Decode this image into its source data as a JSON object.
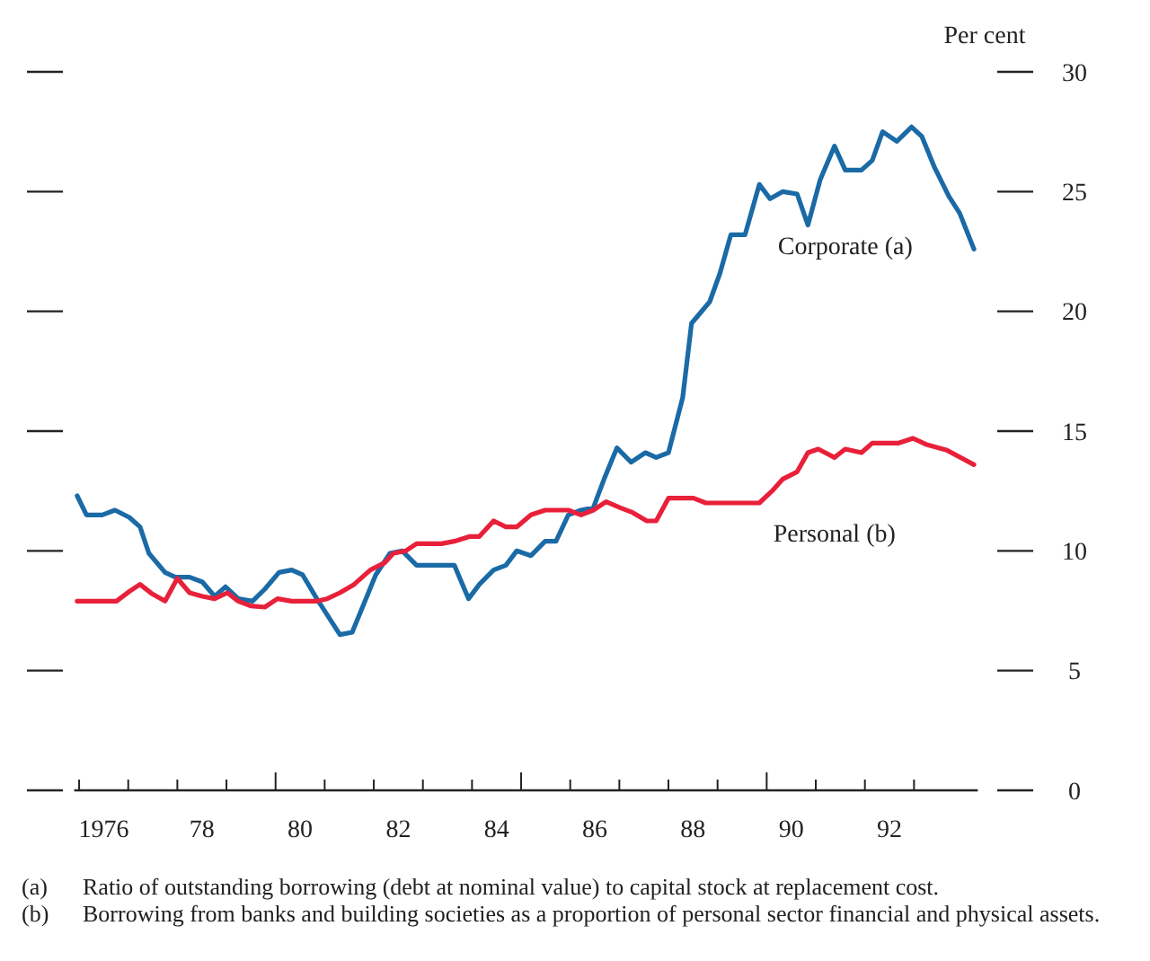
{
  "chart_data": {
    "type": "line",
    "ylabel": "Per cent",
    "xlim": [
      1975.4,
      1993.8
    ],
    "ylim": [
      0,
      30
    ],
    "xticks": [
      {
        "value": 1975.5,
        "label": null
      },
      {
        "value": 1976,
        "label": "1976"
      },
      {
        "value": 1976.5,
        "label": null
      },
      {
        "value": 1977.5,
        "label": null
      },
      {
        "value": 1978,
        "label": "78"
      },
      {
        "value": 1978.5,
        "label": null
      },
      {
        "value": 1979.5,
        "label": null
      },
      {
        "value": 1980,
        "label": "80"
      },
      {
        "value": 1980.5,
        "label": null
      },
      {
        "value": 1981.5,
        "label": null
      },
      {
        "value": 1982,
        "label": "82"
      },
      {
        "value": 1982.5,
        "label": null
      },
      {
        "value": 1983.5,
        "label": null
      },
      {
        "value": 1984,
        "label": "84"
      },
      {
        "value": 1984.5,
        "label": null
      },
      {
        "value": 1985.5,
        "label": null
      },
      {
        "value": 1986,
        "label": "86"
      },
      {
        "value": 1986.5,
        "label": null
      },
      {
        "value": 1987.5,
        "label": null
      },
      {
        "value": 1988,
        "label": "88"
      },
      {
        "value": 1988.5,
        "label": null
      },
      {
        "value": 1989.5,
        "label": null
      },
      {
        "value": 1990,
        "label": "90"
      },
      {
        "value": 1990.5,
        "label": null
      },
      {
        "value": 1991.5,
        "label": null
      },
      {
        "value": 1992,
        "label": "92"
      },
      {
        "value": 1992.5,
        "label": null
      }
    ],
    "yticks": [
      0,
      5,
      10,
      15,
      20,
      25,
      30
    ],
    "series": [
      {
        "name": "Corporate (a)",
        "color": "#1a6aa6",
        "x": [
          1975.46,
          1975.65,
          1975.97,
          1976.23,
          1976.52,
          1976.74,
          1976.92,
          1977.25,
          1977.46,
          1977.75,
          1978.01,
          1978.26,
          1978.48,
          1978.74,
          1979.03,
          1979.28,
          1979.57,
          1979.83,
          1980.05,
          1980.34,
          1980.81,
          1981.06,
          1981.28,
          1981.54,
          1981.83,
          1982.08,
          1982.37,
          1982.88,
          1983.14,
          1983.43,
          1983.65,
          1983.94,
          1984.19,
          1984.41,
          1984.7,
          1984.99,
          1985.21,
          1985.46,
          1985.72,
          1985.97,
          1986.19,
          1986.45,
          1986.74,
          1987.03,
          1987.25,
          1987.5,
          1987.79,
          1987.97,
          1988.34,
          1988.55,
          1988.77,
          1989.06,
          1989.35,
          1989.57,
          1989.83,
          1990.12,
          1990.34,
          1990.59,
          1990.88,
          1991.1,
          1991.43,
          1991.65,
          1991.86,
          1992.15,
          1992.45,
          1992.66,
          1992.92,
          1993.21,
          1993.43,
          1993.72
        ],
        "values": [
          12.3,
          11.5,
          11.5,
          11.7,
          11.4,
          11.0,
          9.9,
          9.1,
          8.9,
          8.9,
          8.7,
          8.1,
          8.5,
          8.0,
          7.9,
          8.4,
          9.1,
          9.2,
          9.0,
          8.0,
          6.5,
          6.6,
          7.7,
          9.0,
          9.9,
          10.0,
          9.4,
          9.4,
          9.4,
          8.0,
          8.6,
          9.2,
          9.4,
          10.0,
          9.8,
          10.4,
          10.4,
          11.5,
          11.7,
          11.8,
          13.0,
          14.3,
          13.7,
          14.1,
          13.9,
          14.1,
          16.4,
          19.5,
          20.4,
          21.6,
          23.2,
          23.2,
          25.3,
          24.7,
          25.0,
          24.9,
          23.6,
          25.5,
          26.9,
          25.9,
          25.9,
          26.3,
          27.5,
          27.1,
          27.7,
          27.3,
          26.0,
          24.8,
          24.1,
          22.6
        ]
      },
      {
        "name": "Personal (b)",
        "color": "#e8203a",
        "x": [
          1975.46,
          1976.26,
          1976.52,
          1976.74,
          1976.99,
          1977.25,
          1977.5,
          1977.75,
          1978.01,
          1978.26,
          1978.52,
          1978.74,
          1978.99,
          1979.28,
          1979.54,
          1979.83,
          1980.34,
          1980.55,
          1980.81,
          1981.1,
          1981.43,
          1981.72,
          1981.9,
          1982.15,
          1982.37,
          1982.88,
          1983.14,
          1983.46,
          1983.65,
          1983.94,
          1984.19,
          1984.41,
          1984.7,
          1984.99,
          1985.46,
          1985.72,
          1985.97,
          1986.23,
          1986.52,
          1986.77,
          1987.06,
          1987.25,
          1987.5,
          1988.01,
          1988.26,
          1989.35,
          1989.61,
          1989.83,
          1990.12,
          1990.34,
          1990.55,
          1990.88,
          1991.1,
          1991.43,
          1991.65,
          1992.19,
          1992.48,
          1992.74,
          1993.17,
          1993.72
        ],
        "values": [
          7.9,
          7.9,
          8.3,
          8.6,
          8.2,
          7.9,
          8.85,
          8.25,
          8.1,
          8.0,
          8.25,
          7.9,
          7.7,
          7.65,
          8.0,
          7.9,
          7.9,
          8.0,
          8.25,
          8.6,
          9.2,
          9.5,
          9.9,
          10.0,
          10.3,
          10.3,
          10.4,
          10.6,
          10.6,
          11.25,
          11.0,
          11.0,
          11.5,
          11.7,
          11.7,
          11.5,
          11.7,
          12.05,
          11.8,
          11.6,
          11.25,
          11.25,
          12.2,
          12.2,
          12.0,
          12.0,
          12.5,
          13.0,
          13.3,
          14.1,
          14.25,
          13.9,
          14.25,
          14.1,
          14.5,
          14.5,
          14.7,
          14.45,
          14.2,
          13.6
        ]
      }
    ],
    "line_style": "solid",
    "annotations": [
      "(a)\tRatio of outstanding borrowing (debt at nominal value) to capital stock at replacement cost.",
      "(b)\tBorrowing from banks and building societies as a proportion of personal sector financial and physical assets."
    ]
  }
}
